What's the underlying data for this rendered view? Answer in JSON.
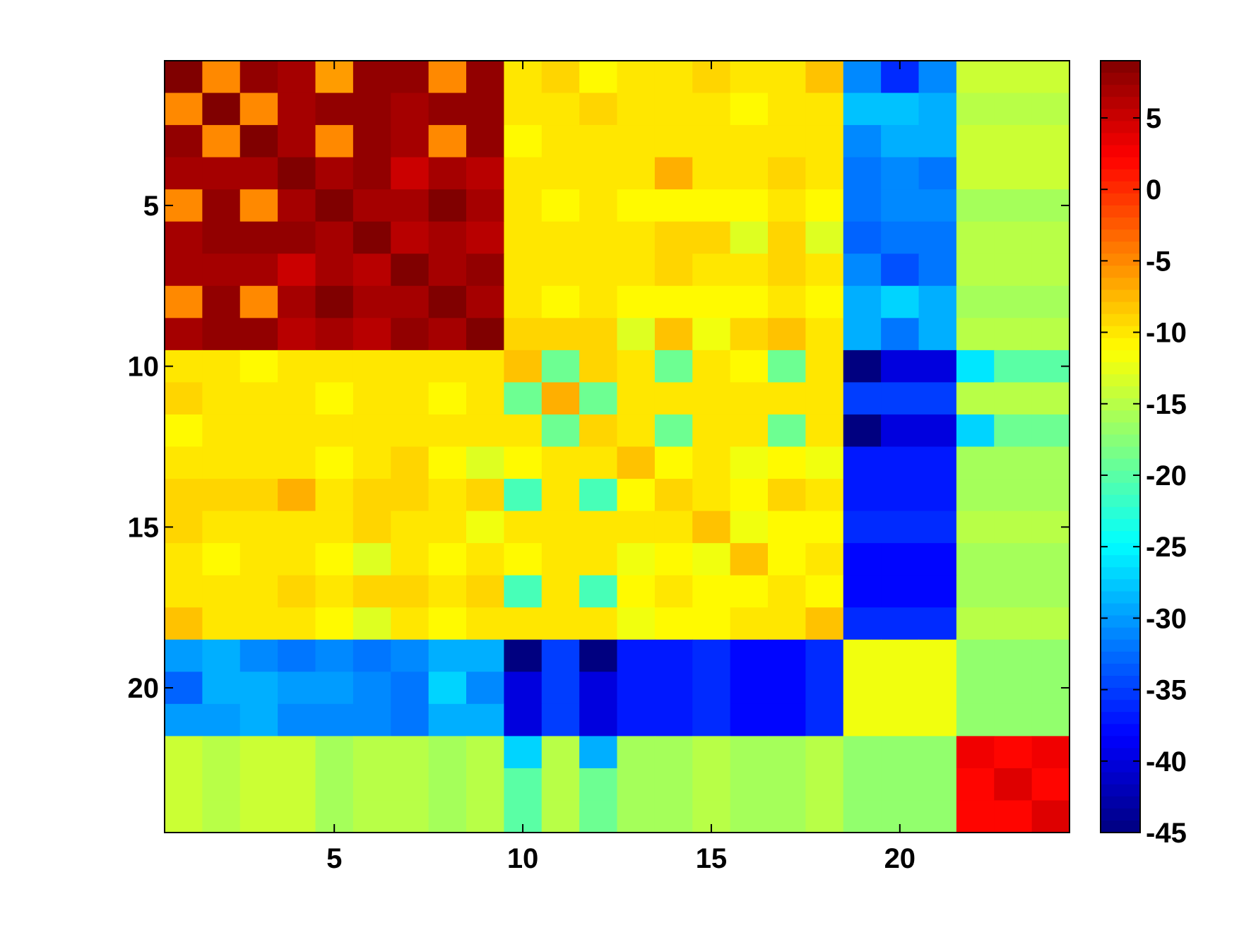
{
  "chart_data": {
    "type": "heatmap",
    "title": "",
    "xlabel": "",
    "ylabel": "",
    "x_range": [
      0.5,
      24.5
    ],
    "y_range": [
      0.5,
      24.5
    ],
    "x_ticks": [
      5,
      10,
      15,
      20
    ],
    "y_ticks": [
      5,
      10,
      15,
      20
    ],
    "colormap": "jet",
    "colorbar": {
      "location": "right",
      "range": [
        -45,
        9
      ],
      "ticks": [
        5,
        0,
        -5,
        -10,
        -15,
        -20,
        -25,
        -30,
        -35,
        -40,
        -45
      ]
    },
    "matrix": [
      [
        9,
        -5,
        8,
        7,
        -6,
        8,
        8,
        -5,
        8,
        -10,
        -9,
        -11,
        -10,
        -10,
        -9,
        -10,
        -10,
        -8,
        -31,
        -36,
        -31,
        -14,
        -14,
        -14
      ],
      [
        -5,
        9,
        -5,
        7,
        8,
        8,
        7,
        8,
        8,
        -10,
        -10,
        -9,
        -10,
        -10,
        -10,
        -11,
        -10,
        -10,
        -28,
        -28,
        -29,
        -15,
        -15,
        -15
      ],
      [
        8,
        -5,
        9,
        7,
        -5,
        8,
        7,
        -5,
        8,
        -11,
        -10,
        -10,
        -10,
        -10,
        -10,
        -10,
        -10,
        -10,
        -31,
        -29,
        -29,
        -14,
        -14,
        -14
      ],
      [
        7,
        7,
        7,
        9,
        7,
        8,
        5,
        7,
        6,
        -10,
        -10,
        -10,
        -10,
        -7,
        -10,
        -10,
        -9,
        -10,
        -32,
        -31,
        -32,
        -14,
        -14,
        -14
      ],
      [
        -5,
        8,
        -5,
        7,
        9,
        7,
        7,
        9,
        7,
        -10,
        -11,
        -10,
        -11,
        -11,
        -11,
        -11,
        -10,
        -11,
        -32,
        -31,
        -31,
        -16,
        -16,
        -16
      ],
      [
        7,
        8,
        8,
        8,
        7,
        9,
        6,
        7,
        6,
        -10,
        -10,
        -10,
        -10,
        -9,
        -9,
        -13,
        -9,
        -13,
        -33,
        -32,
        -32,
        -15,
        -15,
        -15
      ],
      [
        7,
        7,
        7,
        5,
        7,
        6,
        9,
        7,
        8,
        -10,
        -10,
        -10,
        -10,
        -9,
        -10,
        -10,
        -9,
        -10,
        -31,
        -34,
        -32,
        -15,
        -15,
        -15
      ],
      [
        -5,
        8,
        -5,
        7,
        9,
        7,
        7,
        9,
        7,
        -10,
        -11,
        -10,
        -11,
        -11,
        -11,
        -11,
        -10,
        -11,
        -29,
        -27,
        -29,
        -16,
        -16,
        -16
      ],
      [
        7,
        8,
        8,
        6,
        7,
        6,
        8,
        7,
        9,
        -9,
        -9,
        -9,
        -13,
        -8,
        -12,
        -9,
        -8,
        -10,
        -29,
        -32,
        -29,
        -15,
        -15,
        -15
      ],
      [
        -10,
        -10,
        -11,
        -10,
        -10,
        -10,
        -10,
        -10,
        -10,
        -8,
        -19,
        -9,
        -10,
        -19,
        -10,
        -11,
        -19,
        -10,
        -45,
        -40,
        -40,
        -26,
        -20,
        -20
      ],
      [
        -9,
        -10,
        -10,
        -10,
        -11,
        -10,
        -10,
        -11,
        -10,
        -19,
        -7,
        -19,
        -10,
        -10,
        -10,
        -10,
        -10,
        -10,
        -35,
        -35,
        -35,
        -15,
        -15,
        -15
      ],
      [
        -11,
        -10,
        -10,
        -10,
        -10,
        -10,
        -10,
        -10,
        -10,
        -10,
        -19,
        -9,
        -10,
        -19,
        -10,
        -10,
        -19,
        -10,
        -45,
        -40,
        -40,
        -27,
        -19,
        -19
      ],
      [
        -10,
        -10,
        -10,
        -10,
        -11,
        -10,
        -9,
        -11,
        -13,
        -11,
        -10,
        -10,
        -8,
        -11,
        -10,
        -12,
        -11,
        -12,
        -37,
        -37,
        -37,
        -16,
        -16,
        -16
      ],
      [
        -9,
        -9,
        -9,
        -7,
        -10,
        -9,
        -9,
        -10,
        -9,
        -21,
        -10,
        -21,
        -11,
        -9,
        -10,
        -11,
        -9,
        -10,
        -37,
        -37,
        -37,
        -16,
        -16,
        -16
      ],
      [
        -9,
        -10,
        -10,
        -10,
        -10,
        -9,
        -10,
        -10,
        -12,
        -10,
        -10,
        -10,
        -10,
        -10,
        -8,
        -12,
        -11,
        -11,
        -36,
        -36,
        -36,
        -15,
        -15,
        -15
      ],
      [
        -10,
        -11,
        -10,
        -10,
        -11,
        -13,
        -10,
        -11,
        -10,
        -11,
        -10,
        -10,
        -12,
        -11,
        -12,
        -8,
        -11,
        -10,
        -38,
        -38,
        -38,
        -16,
        -16,
        -16
      ],
      [
        -10,
        -10,
        -10,
        -9,
        -10,
        -9,
        -9,
        -10,
        -9,
        -21,
        -10,
        -21,
        -11,
        -10,
        -11,
        -11,
        -10,
        -11,
        -38,
        -38,
        -38,
        -16,
        -16,
        -16
      ],
      [
        -8,
        -10,
        -10,
        -10,
        -11,
        -13,
        -10,
        -11,
        -10,
        -10,
        -10,
        -10,
        -12,
        -11,
        -11,
        -10,
        -10,
        -8,
        -36,
        -36,
        -36,
        -15,
        -15,
        -15
      ],
      [
        -30,
        -29,
        -31,
        -32,
        -31,
        -32,
        -31,
        -29,
        -29,
        -45,
        -35,
        -45,
        -37,
        -37,
        -36,
        -38,
        -38,
        -36,
        -12,
        -12,
        -12,
        -17,
        -17,
        -17
      ],
      [
        -33,
        -29,
        -29,
        -30,
        -30,
        -31,
        -32,
        -27,
        -31,
        -40,
        -35,
        -40,
        -37,
        -37,
        -36,
        -38,
        -38,
        -36,
        -12,
        -12,
        -12,
        -17,
        -17,
        -17
      ],
      [
        -30,
        -30,
        -29,
        -31,
        -31,
        -31,
        -32,
        -29,
        -29,
        -40,
        -35,
        -40,
        -37,
        -37,
        -36,
        -38,
        -38,
        -36,
        -12,
        -12,
        -12,
        -17,
        -17,
        -17
      ],
      [
        -14,
        -15,
        -14,
        -14,
        -16,
        -15,
        -15,
        -16,
        -15,
        -27,
        -15,
        -29,
        -16,
        -16,
        -15,
        -16,
        -16,
        -15,
        -17,
        -17,
        -17,
        3,
        2,
        3
      ],
      [
        -14,
        -15,
        -14,
        -14,
        -16,
        -15,
        -15,
        -16,
        -15,
        -20,
        -15,
        -19,
        -16,
        -16,
        -15,
        -16,
        -16,
        -15,
        -17,
        -17,
        -17,
        2,
        4,
        2
      ],
      [
        -14,
        -15,
        -14,
        -14,
        -16,
        -15,
        -15,
        -16,
        -15,
        -20,
        -15,
        -19,
        -16,
        -16,
        -15,
        -16,
        -16,
        -15,
        -17,
        -17,
        -17,
        2,
        2,
        4
      ]
    ]
  }
}
